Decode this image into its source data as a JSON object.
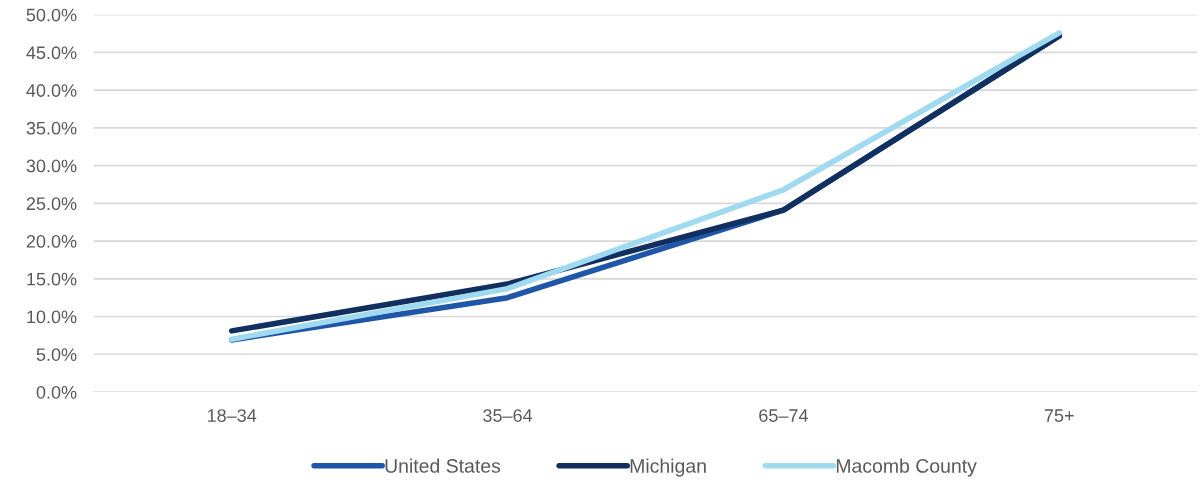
{
  "chart_data": {
    "type": "line",
    "categories": [
      "18–34",
      "35–64",
      "65–74",
      "75+"
    ],
    "series": [
      {
        "name": "United States",
        "color": "#1f56a8",
        "values": [
          6.9,
          12.5,
          24.1,
          47.2
        ]
      },
      {
        "name": "Michigan",
        "color": "#12305f",
        "values": [
          8.1,
          14.3,
          24.1,
          47.2
        ]
      },
      {
        "name": "Macomb County",
        "color": "#a0daf0",
        "values": [
          7.0,
          13.7,
          26.8,
          47.6
        ]
      }
    ],
    "ylim": [
      0,
      50
    ],
    "yticks": [
      {
        "value": 0,
        "label": "0.0%"
      },
      {
        "value": 5,
        "label": "5.0%"
      },
      {
        "value": 10,
        "label": "10.0%"
      },
      {
        "value": 15,
        "label": "15.0%"
      },
      {
        "value": 20,
        "label": "20.0%"
      },
      {
        "value": 25,
        "label": "25.0%"
      },
      {
        "value": 30,
        "label": "30.0%"
      },
      {
        "value": 35,
        "label": "35.0%"
      },
      {
        "value": 40,
        "label": "40.0%"
      },
      {
        "value": 45,
        "label": "45.0%"
      },
      {
        "value": 50,
        "label": "50.0%"
      }
    ],
    "grid": "y",
    "legend": "bottom",
    "marker": "none",
    "line_style": "solid"
  }
}
